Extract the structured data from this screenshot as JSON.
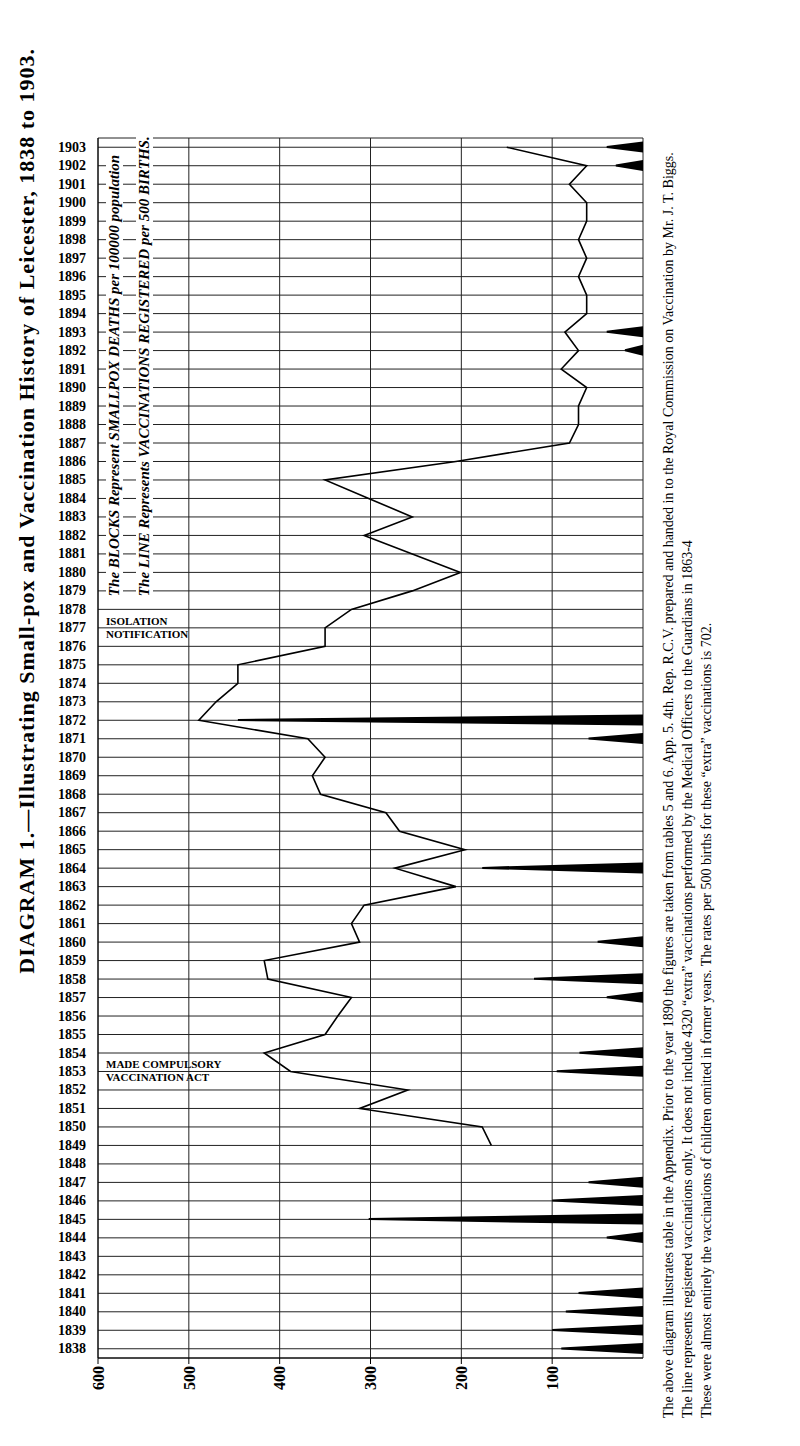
{
  "chart_data": {
    "type": "bar",
    "title": "DIAGRAM 1.—Illustrating Small-pox and Vaccination History of Leicester, 1838 to 1903.",
    "categories": [
      1838,
      1839,
      1840,
      1841,
      1842,
      1843,
      1844,
      1845,
      1846,
      1847,
      1848,
      1849,
      1850,
      1851,
      1852,
      1853,
      1854,
      1855,
      1856,
      1857,
      1858,
      1859,
      1860,
      1861,
      1862,
      1863,
      1864,
      1865,
      1866,
      1867,
      1868,
      1869,
      1870,
      1871,
      1872,
      1873,
      1874,
      1875,
      1876,
      1877,
      1878,
      1879,
      1880,
      1881,
      1882,
      1883,
      1884,
      1885,
      1886,
      1887,
      1888,
      1889,
      1890,
      1891,
      1892,
      1893,
      1894,
      1895,
      1896,
      1897,
      1898,
      1899,
      1900,
      1901,
      1902,
      1903
    ],
    "series": [
      {
        "name": "The BLOCKS Represent SMALLPOX DEATHS per 100000 population",
        "type": "bar",
        "color": "#000000",
        "values": [
          90,
          100,
          85,
          71,
          0,
          0,
          40,
          302,
          100,
          60,
          0,
          0,
          0,
          0,
          0,
          95,
          70,
          0,
          0,
          40,
          120,
          0,
          50,
          0,
          0,
          0,
          177,
          0,
          0,
          0,
          0,
          0,
          0,
          60,
          446,
          0,
          0,
          0,
          0,
          0,
          0,
          0,
          0,
          0,
          0,
          0,
          0,
          0,
          0,
          0,
          0,
          0,
          0,
          0,
          20,
          40,
          0,
          0,
          0,
          0,
          0,
          0,
          0,
          0,
          30,
          40
        ]
      },
      {
        "name": "The LINE Represents VACCINATIONS REGISTERED per 500 BIRTHS.",
        "type": "line",
        "color": "#000000",
        "values": [
          null,
          null,
          null,
          null,
          null,
          null,
          null,
          null,
          null,
          null,
          null,
          167,
          177,
          312,
          259,
          388,
          417,
          350,
          336,
          321,
          413,
          417,
          312,
          321,
          307,
          206,
          273,
          196,
          268,
          283,
          355,
          364,
          350,
          369,
          489,
          470,
          446,
          446,
          350,
          350,
          321,
          254,
          201,
          254,
          307,
          254,
          302,
          350,
          206,
          81,
          71,
          71,
          62,
          90,
          71,
          86,
          62,
          62,
          71,
          62,
          71,
          62,
          62,
          81,
          62,
          150
        ]
      }
    ],
    "ylim": [
      0,
      600
    ],
    "yticks": [
      100,
      200,
      300,
      400,
      500,
      600
    ],
    "grid": true,
    "annotations": [
      {
        "x": 1853,
        "text": [
          "VACCINATION ACT",
          "MADE COMPULSORY"
        ]
      },
      {
        "x": 1877,
        "text": [
          "NOTIFICATION",
          "ISOLATION"
        ]
      }
    ],
    "notes": [
      "The above diagram illustrates table in the Appendix. Prior to the year 1890 the figures are taken from tables 5 and 6. App. 5. 4th. Rep. R.C.V. prepared and handed in to the Royal Commission on Vaccination by Mr. J. T. Biggs.",
      "The line represents registered vaccinations only. It does not include 4320 “extra” vaccinations performed by the Medical Officers to the Guardians in 1863-4",
      "These were almost entirely the vaccinations of children omitted in former years. The rates per 500 births for these “extra” vaccinations is 702."
    ]
  }
}
